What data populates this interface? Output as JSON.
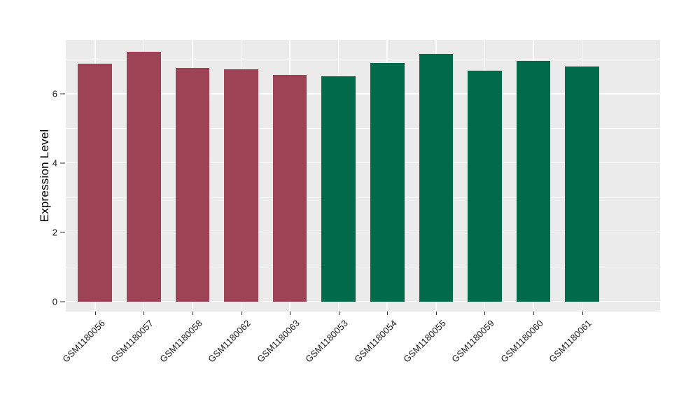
{
  "figure": {
    "background": "#ffffff",
    "panel_background": "#ebebeb",
    "grid_color": "#ffffff",
    "tick_color": "#333333",
    "text_color": "#1a1a1a"
  },
  "chart_data": {
    "type": "bar",
    "title": "",
    "xlabel": "",
    "ylabel": "Expression Level",
    "categories": [
      "GSM1180056",
      "GSM1180057",
      "GSM1180058",
      "GSM1180062",
      "GSM1180063",
      "GSM1180053",
      "GSM1180054",
      "GSM1180055",
      "GSM1180059",
      "GSM1180060",
      "GSM1180061"
    ],
    "values": [
      6.86,
      7.2,
      6.74,
      6.7,
      6.54,
      6.5,
      6.89,
      7.14,
      6.66,
      6.95,
      6.78
    ],
    "bar_colors": [
      "#9e4356",
      "#9e4356",
      "#9e4356",
      "#9e4356",
      "#9e4356",
      "#006b4a",
      "#006b4a",
      "#006b4a",
      "#006b4a",
      "#006b4a",
      "#006b4a"
    ],
    "group_colors": {
      "maroon_group": "#9e4356",
      "green_group": "#006b4a"
    },
    "y_ticks": [
      0,
      2,
      4,
      6
    ],
    "y_minor_ticks": [
      1,
      3,
      5,
      7
    ],
    "ylim": [
      -0.29,
      7.55
    ],
    "grid": true,
    "legend": "none",
    "bar_width_fraction": 0.7,
    "x_expand_units": 0.6,
    "x_tick_rotation_deg": 45
  }
}
